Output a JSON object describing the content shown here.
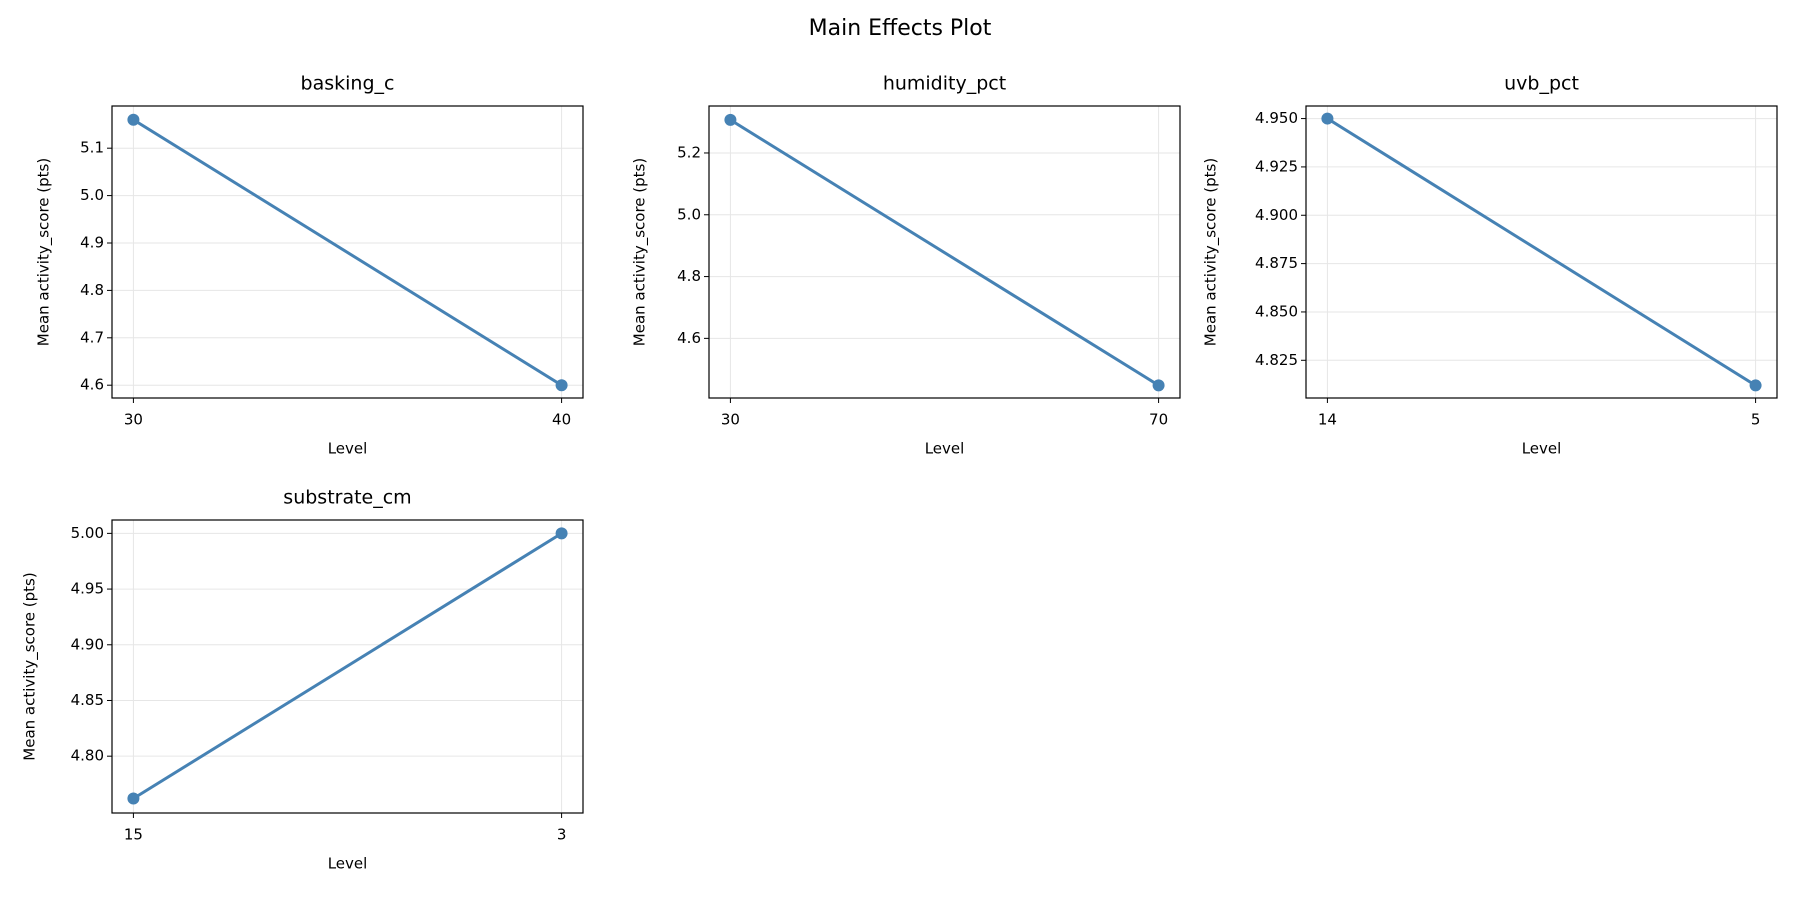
{
  "title": "Main Effects Plot",
  "chart_data": [
    {
      "type": "line",
      "title": "basking_c",
      "x_label": "Level",
      "y_label": "Mean activity_score (pts)",
      "categories": [
        "30",
        "40"
      ],
      "values": [
        5.16,
        4.6
      ],
      "color": "#4682b4",
      "grid": true,
      "ylim": [
        4.573,
        5.189
      ],
      "yticks": [
        4.6,
        4.7,
        4.8,
        4.9,
        {
          "value": 5.0,
          "label": "5.0"
        },
        5.1
      ]
    },
    {
      "type": "line",
      "title": "humidity_pct",
      "x_label": "Level",
      "y_label": "Mean activity_score (pts)",
      "categories": [
        "30",
        "70"
      ],
      "values": [
        5.307,
        4.448
      ],
      "color": "#4682b4",
      "grid": true,
      "ylim": [
        4.407,
        5.352
      ],
      "yticks": [
        4.6,
        4.8,
        {
          "value": 5.0,
          "label": "5.0"
        },
        5.2
      ]
    },
    {
      "type": "line",
      "title": "uvb_pct",
      "x_label": "Level",
      "y_label": "Mean activity_score (pts)",
      "categories": [
        "14",
        "5"
      ],
      "values": [
        4.95,
        4.812
      ],
      "color": "#4682b4",
      "grid": true,
      "ylim": [
        4.8055,
        4.9565
      ],
      "yticks": [
        4.825,
        {
          "value": 4.85,
          "label": "4.850"
        },
        4.875,
        {
          "value": 4.9,
          "label": "4.900"
        },
        4.925,
        {
          "value": 4.95,
          "label": "4.950"
        }
      ]
    },
    {
      "type": "line",
      "title": "substrate_cm",
      "x_label": "Level",
      "y_label": "Mean activity_score (pts)",
      "categories": [
        "15",
        "3"
      ],
      "values": [
        4.762,
        5.0
      ],
      "color": "#4682b4",
      "grid": true,
      "ylim": [
        4.749,
        5.012
      ],
      "yticks": [
        {
          "value": 4.8,
          "label": "4.80"
        },
        4.85,
        {
          "value": 4.9,
          "label": "4.90"
        },
        4.95,
        {
          "value": 5.0,
          "label": "5.00"
        }
      ]
    }
  ]
}
